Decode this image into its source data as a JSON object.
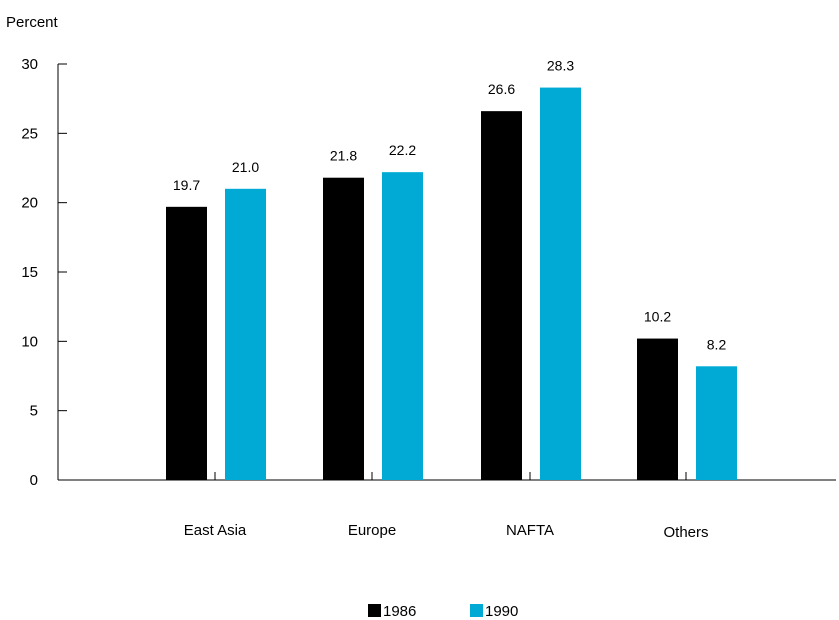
{
  "chart_data": {
    "type": "bar",
    "ylabel": "Percent",
    "xlabel": "",
    "categories": [
      "East Asia",
      "Europe",
      "NAFTA",
      "Others"
    ],
    "series": [
      {
        "name": "1986",
        "values": [
          19.7,
          21.8,
          26.6,
          10.2
        ],
        "labels": [
          "19.7",
          "21.8",
          "26.6",
          "10.2"
        ],
        "color": "#000000"
      },
      {
        "name": "1990",
        "values": [
          21.0,
          22.2,
          28.3,
          8.2
        ],
        "labels": [
          "21.0",
          "22.2",
          "28.3",
          "8.2"
        ],
        "color": "#00aad4"
      }
    ],
    "ylim": [
      0,
      30
    ],
    "yticks": [
      0,
      5,
      10,
      15,
      20,
      25,
      30
    ],
    "grid": false,
    "legend_position": "bottom-center"
  }
}
